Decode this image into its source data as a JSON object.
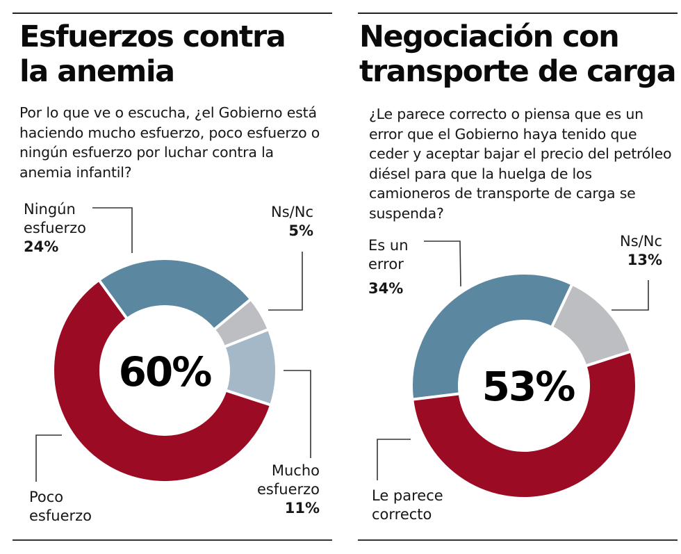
{
  "panels": [
    {
      "title_lines": [
        "Esfuerzos contra",
        "la anemia"
      ],
      "question": "Por lo que ve o escucha, ¿el Gobierno está haciendo mucho esfuerzo, poco esfuerzo o ningún esfuerzo por luchar contra la anemia infantil?",
      "center_label": "60%"
    },
    {
      "title_lines": [
        "Negociación con",
        "transporte de carga"
      ],
      "question": "¿Le parece correcto o piensa que es un error que el Gobierno haya tenido que ceder y aceptar bajar el precio del petróleo diésel para que la huelga de los camioneros de transporte de carga se suspenda?",
      "center_label": "53%"
    }
  ],
  "colors": {
    "red": "#9b0b23",
    "steel_blue": "#5b87a1",
    "light_blue": "#a4b8c8",
    "gray": "#bcbec1"
  },
  "chart_data": [
    {
      "type": "pie",
      "variant": "donut",
      "title": "Esfuerzos contra la anemia",
      "center_label": "60%",
      "slices": [
        {
          "label": "Poco esfuerzo",
          "value": 60,
          "pct_label": "",
          "color": "#9b0b23"
        },
        {
          "label": "Ningún esfuerzo",
          "value": 24,
          "pct_label": "24%",
          "color": "#5b87a1"
        },
        {
          "label": "Ns/Nc",
          "value": 5,
          "pct_label": "5%",
          "color": "#bcbec1"
        },
        {
          "label": "Mucho esfuerzo",
          "value": 11,
          "pct_label": "11%",
          "color": "#a4b8c8"
        }
      ]
    },
    {
      "type": "pie",
      "variant": "donut",
      "title": "Negociación con transporte de carga",
      "center_label": "53%",
      "slices": [
        {
          "label": "Es un error",
          "value": 34,
          "pct_label": "34%",
          "color": "#5b87a1"
        },
        {
          "label": "Ns/Nc",
          "value": 13,
          "pct_label": "13%",
          "color": "#bcbec1"
        },
        {
          "label": "Le parece correcto",
          "value": 53,
          "pct_label": "",
          "color": "#9b0b23"
        }
      ]
    }
  ]
}
